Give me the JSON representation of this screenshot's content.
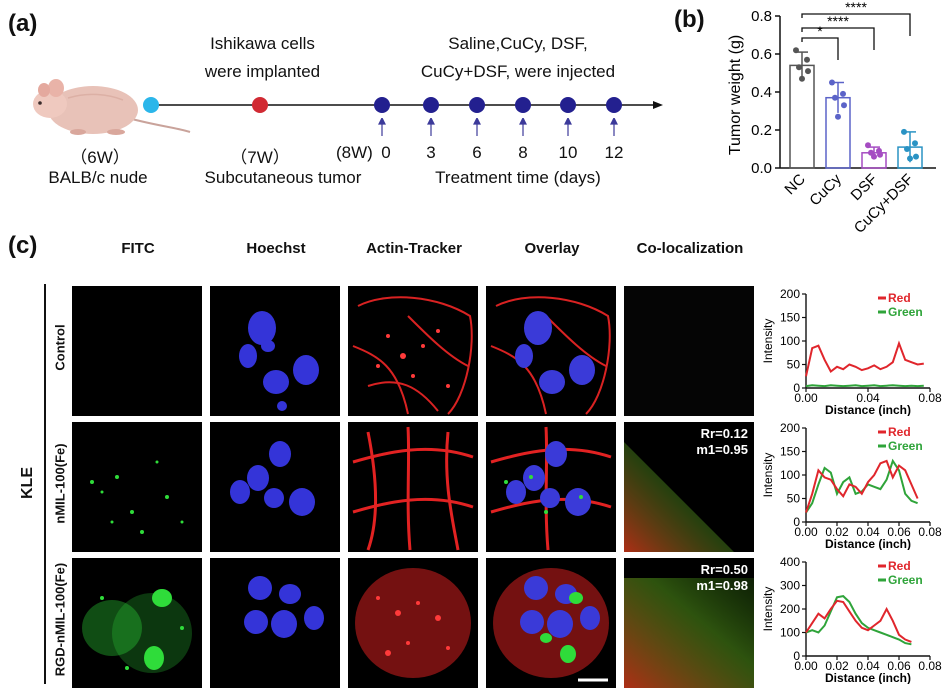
{
  "panel_a": {
    "label": "(a)",
    "implant_note_1": "Ishikawa cells",
    "implant_note_2": "were implanted",
    "inject_note_1": "Saline,CuCy, DSF,",
    "inject_note_2": "CuCy+DSF, were injected",
    "age_6w": "（6W）",
    "strain": "BALB/c nude",
    "age_7w": "（7W）",
    "tumor_note": "Subcutaneous tumor",
    "age_8w": "(8W)",
    "ticks": [
      "0",
      "3",
      "6",
      "8",
      "10",
      "12"
    ],
    "time_axis": "Treatment time (days)",
    "colors": {
      "start": "#2bb6ea",
      "implant": "#d12a33",
      "treatment": "#23208f"
    }
  },
  "panel_b": {
    "label": "(b)",
    "chart_data": {
      "type": "bar",
      "ylabel": "Tumor weight (g)",
      "ylim": [
        0,
        0.8
      ],
      "yticks": [
        "0.0",
        "0.2",
        "0.4",
        "0.6",
        "0.8"
      ],
      "categories": [
        "NC",
        "CuCy",
        "DSF",
        "CuCy+DSF"
      ],
      "values": [
        0.54,
        0.37,
        0.08,
        0.11
      ],
      "errors": [
        0.07,
        0.08,
        0.03,
        0.08
      ],
      "points": [
        [
          0.62,
          0.57,
          0.53,
          0.51,
          0.47
        ],
        [
          0.45,
          0.39,
          0.37,
          0.33,
          0.27
        ],
        [
          0.12,
          0.09,
          0.08,
          0.07,
          0.06
        ],
        [
          0.19,
          0.13,
          0.1,
          0.06,
          0.05
        ]
      ],
      "colors": [
        "#555555",
        "#5b63c8",
        "#a54cc2",
        "#2a93c4"
      ],
      "significance": [
        "*",
        "****",
        "****"
      ]
    }
  },
  "panel_c": {
    "label": "(c)",
    "columns": [
      "FITC",
      "Hoechst",
      "Actin-Tracker",
      "Overlay",
      "Co-localization"
    ],
    "rows": [
      "Control",
      "nMIL-100(Fe)",
      "RGD-nMIL-100(Fe)"
    ],
    "group_label": "KLE",
    "coloc": [
      {
        "rr": "",
        "m1": ""
      },
      {
        "rr": "Rr=0.12",
        "m1": "m1=0.95"
      },
      {
        "rr": "Rr=0.50",
        "m1": "m1=0.98"
      }
    ],
    "profiles": [
      {
        "ylim": [
          0,
          200
        ],
        "yticks": [
          "0",
          "50",
          "100",
          "150",
          "200"
        ],
        "xticks": [
          "0.00",
          "0.04",
          "0.08"
        ],
        "xlabel": "Distance (inch)",
        "ylabel": "Intensity",
        "legend": [
          "Red",
          "Green"
        ],
        "x": [
          0.0,
          0.004,
          0.008,
          0.012,
          0.016,
          0.02,
          0.024,
          0.028,
          0.032,
          0.036,
          0.04,
          0.044,
          0.048,
          0.052,
          0.056,
          0.06,
          0.064,
          0.068,
          0.072,
          0.076
        ],
        "red": [
          25,
          85,
          90,
          60,
          35,
          45,
          40,
          50,
          45,
          38,
          42,
          48,
          40,
          45,
          55,
          95,
          60,
          55,
          50,
          52
        ],
        "green": [
          4,
          6,
          5,
          4,
          6,
          5,
          4,
          5,
          6,
          4,
          5,
          6,
          4,
          5,
          6,
          5,
          4,
          5,
          4,
          5
        ]
      },
      {
        "ylim": [
          0,
          200
        ],
        "yticks": [
          "0",
          "50",
          "100",
          "150",
          "200"
        ],
        "xticks": [
          "0.00",
          "0.02",
          "0.04",
          "0.06",
          "0.08"
        ],
        "xlabel": "Distance (inch)",
        "ylabel": "Intensity",
        "legend": [
          "Red",
          "Green"
        ],
        "x": [
          0.0,
          0.004,
          0.008,
          0.012,
          0.016,
          0.02,
          0.024,
          0.028,
          0.032,
          0.036,
          0.04,
          0.044,
          0.048,
          0.052,
          0.056,
          0.06,
          0.064,
          0.068,
          0.072
        ],
        "red": [
          20,
          60,
          110,
          95,
          90,
          70,
          55,
          80,
          75,
          60,
          85,
          100,
          125,
          130,
          95,
          120,
          110,
          80,
          50
        ],
        "green": [
          20,
          40,
          80,
          115,
          105,
          60,
          85,
          95,
          60,
          65,
          80,
          75,
          70,
          90,
          130,
          110,
          60,
          45,
          40
        ]
      },
      {
        "ylim": [
          0,
          400
        ],
        "yticks": [
          "0",
          "100",
          "200",
          "300",
          "400"
        ],
        "xticks": [
          "0.00",
          "0.02",
          "0.04",
          "0.06",
          "0.08"
        ],
        "xlabel": "Distance (inch)",
        "ylabel": "Intensity",
        "legend": [
          "Red",
          "Green"
        ],
        "x": [
          0.0,
          0.004,
          0.008,
          0.012,
          0.016,
          0.02,
          0.024,
          0.028,
          0.032,
          0.036,
          0.04,
          0.044,
          0.048,
          0.052,
          0.056,
          0.06,
          0.064,
          0.068
        ],
        "red": [
          100,
          140,
          180,
          160,
          200,
          235,
          230,
          190,
          150,
          120,
          110,
          130,
          150,
          200,
          150,
          90,
          70,
          60
        ],
        "green": [
          100,
          110,
          100,
          130,
          190,
          250,
          255,
          230,
          180,
          140,
          120,
          110,
          100,
          90,
          80,
          70,
          55,
          50
        ]
      }
    ],
    "colors": {
      "red": "#e0262c",
      "green": "#2fa43a"
    }
  }
}
